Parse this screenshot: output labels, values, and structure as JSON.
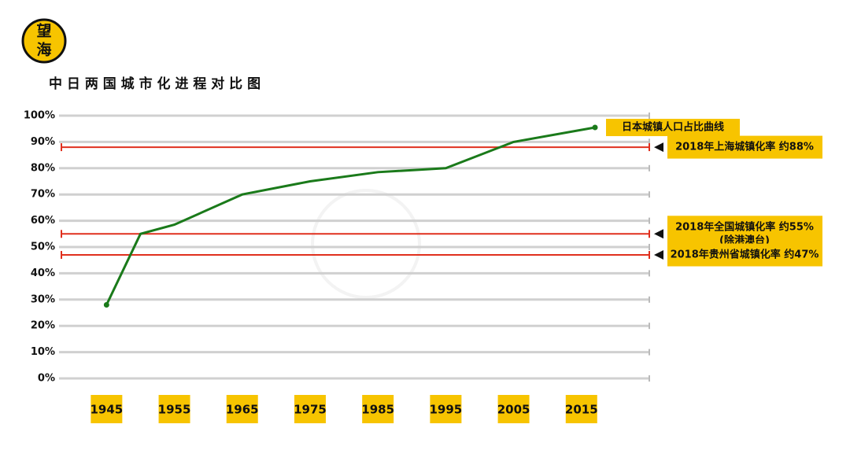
{
  "logo": [
    "望",
    "海"
  ],
  "chart_data": {
    "type": "line",
    "title": "中 日 两 国 城 市 化 进 程 对 比 图",
    "xlim": [
      1938,
      2025
    ],
    "xticks": [
      1945,
      1955,
      1965,
      1975,
      1985,
      1995,
      2005,
      2015
    ],
    "ylim": [
      0,
      100
    ],
    "yticks": [
      {
        "value": 0,
        "label": "0%"
      },
      {
        "value": 10,
        "label": "10%"
      },
      {
        "value": 20,
        "label": "20%"
      },
      {
        "value": 30,
        "label": "30%"
      },
      {
        "value": 40,
        "label": "40%"
      },
      {
        "value": 50,
        "label": "50%"
      },
      {
        "value": 60,
        "label": "60%"
      },
      {
        "value": 70,
        "label": "70%"
      },
      {
        "value": 80,
        "label": "80%"
      },
      {
        "value": 90,
        "label": "90%"
      },
      {
        "value": 100,
        "label": "100%"
      }
    ],
    "grid": true,
    "series": [
      {
        "name": "日本城镇人口占比曲线",
        "color": "#1a7a1a",
        "x": [
          1945,
          1950,
          1955,
          1965,
          1975,
          1985,
          1995,
          2005,
          2017
        ],
        "values": [
          28,
          55,
          58.5,
          70,
          75,
          78.5,
          80,
          90,
          95.5
        ]
      }
    ],
    "reference_lines": [
      {
        "value": 88,
        "color": "#e0301e",
        "label": [
          "2018年上海城镇化率 约88%"
        ]
      },
      {
        "value": 55,
        "color": "#e0301e",
        "label": [
          "2018年全国城镇化率 约55%",
          "(除港澳台)"
        ]
      },
      {
        "value": 47,
        "color": "#e0301e",
        "label": [
          "2018年贵州省城镇化率 约47%"
        ]
      }
    ]
  }
}
